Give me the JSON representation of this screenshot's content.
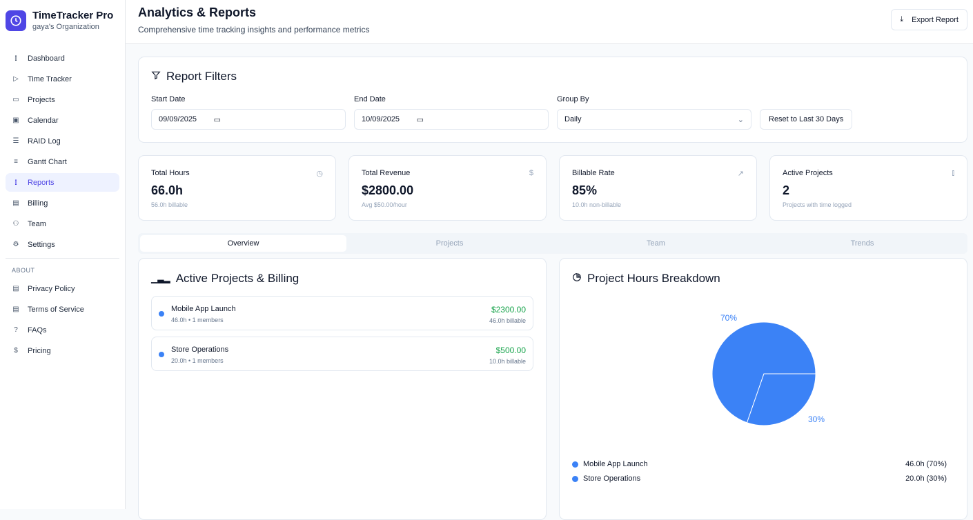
{
  "brand": {
    "title": "TimeTracker Pro",
    "org": "gaya's Organization"
  },
  "nav": [
    {
      "label": "Dashboard",
      "icon": "bar-chart-icon"
    },
    {
      "label": "Time Tracker",
      "icon": "play-icon"
    },
    {
      "label": "Projects",
      "icon": "folder-icon"
    },
    {
      "label": "Calendar",
      "icon": "calendar-icon"
    },
    {
      "label": "RAID Log",
      "icon": "list-checks-icon"
    },
    {
      "label": "Gantt Chart",
      "icon": "gantt-icon"
    },
    {
      "label": "Reports",
      "icon": "bar-chart-icon",
      "active": true
    },
    {
      "label": "Billing",
      "icon": "receipt-icon"
    },
    {
      "label": "Team",
      "icon": "users-icon"
    },
    {
      "label": "Settings",
      "icon": "gear-icon"
    }
  ],
  "about": {
    "heading": "ABOUT",
    "items": [
      {
        "label": "Privacy Policy",
        "icon": "document-icon"
      },
      {
        "label": "Terms of Service",
        "icon": "document-icon"
      },
      {
        "label": "FAQs",
        "icon": "help-circle-icon"
      },
      {
        "label": "Pricing",
        "icon": "dollar-icon"
      }
    ]
  },
  "header": {
    "title": "Analytics & Reports",
    "subtitle": "Comprehensive time tracking insights and performance metrics",
    "export_label": "Export Report"
  },
  "filters": {
    "title": "Report Filters",
    "start_label": "Start Date",
    "start_value": "09/09/2025",
    "end_label": "End Date",
    "end_value": "10/09/2025",
    "group_label": "Group By",
    "group_value": "Daily",
    "reset_label": "Reset to Last 30 Days"
  },
  "stats": [
    {
      "label": "Total Hours",
      "value": "66.0h",
      "sub": "56.0h billable",
      "icon": "clock-icon"
    },
    {
      "label": "Total Revenue",
      "value": "$2800.00",
      "sub": "Avg $50.00/hour",
      "icon": "dollar-icon"
    },
    {
      "label": "Billable Rate",
      "value": "85%",
      "sub": "10.0h non-billable",
      "icon": "trending-up-icon"
    },
    {
      "label": "Active Projects",
      "value": "2",
      "sub": "Projects with time logged",
      "icon": "bar-chart-icon"
    }
  ],
  "tabs": [
    "Overview",
    "Projects",
    "Team",
    "Trends"
  ],
  "active_projects": {
    "title": "Active Projects & Billing",
    "items": [
      {
        "name": "Mobile App Launch",
        "meta": "46.0h • 1 members",
        "amount": "$2300.00",
        "billable": "46.0h billable"
      },
      {
        "name": "Store Operations",
        "meta": "20.0h • 1 members",
        "amount": "$500.00",
        "billable": "10.0h billable"
      }
    ]
  },
  "breakdown": {
    "title": "Project Hours Breakdown"
  },
  "chart_data": {
    "type": "pie",
    "categories": [
      "Mobile App Launch",
      "Store Operations"
    ],
    "values": [
      46.0,
      20.0
    ],
    "labels": [
      "70%",
      "30%"
    ],
    "legend_values": [
      "46.0h (70%)",
      "20.0h (30%)"
    ],
    "color": "#3b82f6",
    "legend": "bottom"
  }
}
